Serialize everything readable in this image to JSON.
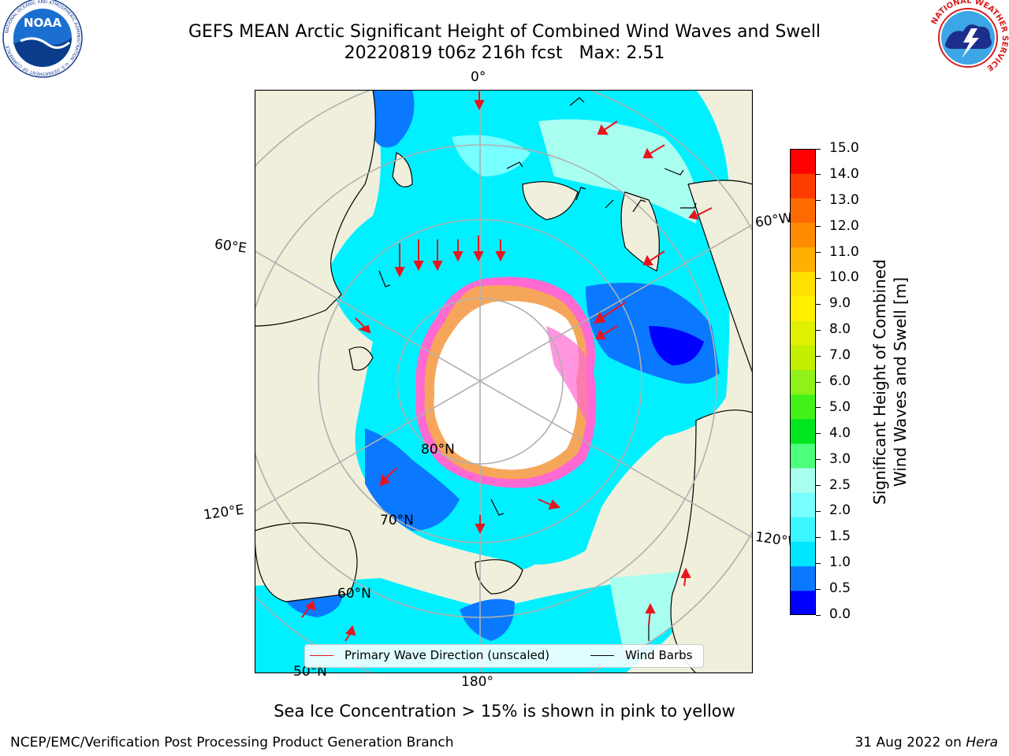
{
  "header": {
    "title_line1": "GEFS MEAN Arctic Significant Height of Combined Wind Waves and Swell",
    "title_line2": "20220819 t06z 216h fcst   Max: 2.51"
  },
  "logos": {
    "noaa_text": "NOAA",
    "noaa_ring_text": "NATIONAL OCEANIC AND ATMOSPHERIC ADMINISTRATION · U.S. DEPARTMENT OF COMMERCE",
    "nws_ring_text": "NATIONAL WEATHER SERVICE"
  },
  "map": {
    "projection": "north-polar-stereographic",
    "longitude_labels": {
      "top": "0°",
      "right_upper": "60°W",
      "left_upper": "60°E",
      "left_lower": "120°E",
      "right_lower": "120°W",
      "bottom": "180°"
    },
    "latitude_labels": {
      "lat80": "80°N",
      "lat70": "70°N",
      "lat60": "60°N",
      "lat50": "50°N"
    },
    "colors": {
      "land": "#efefdc",
      "ice_hole": "#ffffff",
      "gridline": "#b0b0b0",
      "coast": "#000000",
      "wave_arrow": "#e8141e",
      "wind_barb": "#000000",
      "ice_pink": "#ff69d2",
      "ice_orange": "#f6a65a"
    },
    "legend": {
      "primary_wave_label": "Primary Wave Direction (unscaled)",
      "wind_barbs_label": "Wind Barbs"
    }
  },
  "colorbar": {
    "title_line1": "Significant Height of Combined",
    "title_line2": "Wind Waves and Swell [m]",
    "min": 0.0,
    "max": 15.0,
    "ticks": [
      "0.0",
      "0.5",
      "1.0",
      "1.5",
      "2.0",
      "2.5",
      "3.0",
      "4.0",
      "5.0",
      "6.0",
      "7.0",
      "8.0",
      "9.0",
      "10.0",
      "11.0",
      "12.0",
      "13.0",
      "14.0",
      "15.0"
    ],
    "bin_colors": [
      "#0000ff",
      "#0a78ff",
      "#00e6ff",
      "#3cf6ff",
      "#78ffff",
      "#a8fff0",
      "#4cff7c",
      "#00e61e",
      "#42f01a",
      "#90f01a",
      "#c4f000",
      "#e0f000",
      "#fff000",
      "#ffe000",
      "#ffb000",
      "#ff8c00",
      "#ff6a00",
      "#ff3c00",
      "#ff0000"
    ]
  },
  "caption": "Sea Ice Concentration > 15% is shown in pink to yellow",
  "footer": {
    "left": "NCEP/EMC/Verification Post Processing Product Generation Branch",
    "right_date": "31 Aug 2022 on ",
    "right_host": "Hera"
  }
}
